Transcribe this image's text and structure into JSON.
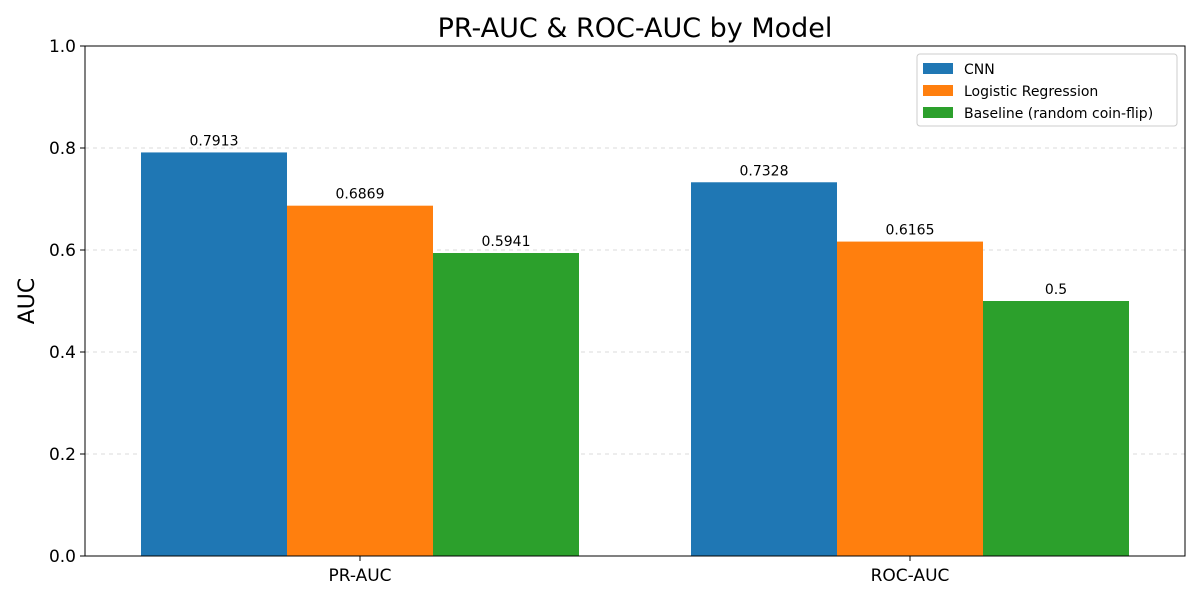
{
  "chart_data": {
    "type": "bar",
    "title": "PR-AUC & ROC-AUC by Model",
    "xlabel": "",
    "ylabel": "AUC",
    "ylim": [
      0,
      1.0
    ],
    "yticks": [
      "0.0",
      "0.2",
      "0.4",
      "0.6",
      "0.8",
      "1.0"
    ],
    "grid": "horizontal dashed",
    "legend_position": "top-right",
    "categories": [
      "PR-AUC",
      "ROC-AUC"
    ],
    "series": [
      {
        "name": "CNN",
        "color": "#1f77b4",
        "values": [
          0.7913,
          0.7328
        ],
        "labels": [
          "0.7913",
          "0.7328"
        ]
      },
      {
        "name": "Logistic Regression",
        "color": "#ff7f0e",
        "values": [
          0.6869,
          0.6165
        ],
        "labels": [
          "0.6869",
          "0.6165"
        ]
      },
      {
        "name": "Baseline (random coin-flip)",
        "color": "#2ca02c",
        "values": [
          0.5941,
          0.5
        ],
        "labels": [
          "0.5941",
          "0.5"
        ]
      }
    ]
  }
}
